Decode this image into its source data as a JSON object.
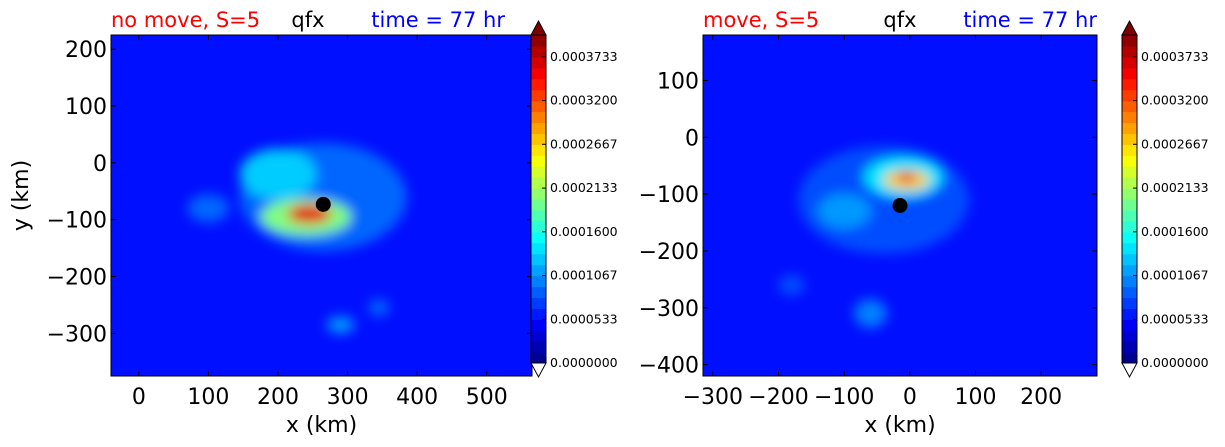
{
  "chart_data": [
    {
      "type": "heatmap",
      "title_left": "no move, S=5",
      "title_center": "qfx",
      "title_right": "time = 77 hr",
      "xlabel": "x (km)",
      "ylabel": "y (km)",
      "xlim": [
        -40,
        565
      ],
      "ylim": [
        -375,
        225
      ],
      "xticks": [
        0,
        100,
        200,
        300,
        400,
        500
      ],
      "xtick_labels": [
        "0",
        "100",
        "200",
        "300",
        "400",
        "500"
      ],
      "yticks": [
        200,
        100,
        0,
        -100,
        -200,
        -300
      ],
      "ytick_labels": [
        "200",
        "100",
        "0",
        "−100",
        "−200",
        "−300"
      ],
      "storm_center": {
        "x": 265,
        "y": -73
      },
      "features": [
        {
          "x": 265,
          "y": -60,
          "rx": 120,
          "ry": 95,
          "v": 9e-05
        },
        {
          "x": 240,
          "y": -95,
          "rx": 65,
          "ry": 32,
          "v": 0.0002
        },
        {
          "x": 245,
          "y": -90,
          "rx": 32,
          "ry": 17,
          "v": 0.00036
        },
        {
          "x": 200,
          "y": -20,
          "rx": 55,
          "ry": 45,
          "v": 0.00013
        },
        {
          "x": 100,
          "y": -80,
          "rx": 30,
          "ry": 25,
          "v": 9e-05
        },
        {
          "x": 290,
          "y": -285,
          "rx": 20,
          "ry": 15,
          "v": 0.00011
        },
        {
          "x": 345,
          "y": -255,
          "rx": 15,
          "ry": 15,
          "v": 9e-05
        }
      ],
      "colorbar": {
        "vmin": 0.0,
        "vmax": 0.0004,
        "tick_values": [
          0.0,
          5.33e-05,
          0.0001067,
          0.00016,
          0.0002133,
          0.0002667,
          0.00032,
          0.0003733
        ],
        "tick_labels": [
          "0.0000000",
          "0.0000533",
          "0.0001067",
          "0.0001600",
          "0.0002133",
          "0.0002667",
          "0.0003200",
          "0.0003733"
        ],
        "levels": 30,
        "colormap": "jet",
        "extend": "both"
      }
    },
    {
      "type": "heatmap",
      "title_left": "move, S=5",
      "title_center": "qfx",
      "title_right": "time = 77 hr",
      "xlabel": "x (km)",
      "ylabel": "",
      "xlim": [
        -315,
        285
      ],
      "ylim": [
        -420,
        180
      ],
      "xticks": [
        -300,
        -200,
        -100,
        0,
        100,
        200
      ],
      "xtick_labels": [
        "−300",
        "−200",
        "−100",
        "0",
        "100",
        "200"
      ],
      "yticks": [
        100,
        0,
        -100,
        -200,
        -300,
        -400
      ],
      "ytick_labels": [
        "100",
        "0",
        "−100",
        "−200",
        "−300",
        "−400"
      ],
      "storm_center": {
        "x": -15,
        "y": -120
      },
      "features": [
        {
          "x": -40,
          "y": -110,
          "rx": 130,
          "ry": 95,
          "v": 8e-05
        },
        {
          "x": -10,
          "y": -70,
          "rx": 60,
          "ry": 35,
          "v": 0.00014
        },
        {
          "x": -5,
          "y": -75,
          "rx": 35,
          "ry": 17,
          "v": 0.00027
        },
        {
          "x": -5,
          "y": -70,
          "rx": 14,
          "ry": 9,
          "v": 0.00036
        },
        {
          "x": -100,
          "y": -130,
          "rx": 40,
          "ry": 30,
          "v": 0.00011
        },
        {
          "x": -60,
          "y": -310,
          "rx": 25,
          "ry": 25,
          "v": 0.0001
        },
        {
          "x": -180,
          "y": -260,
          "rx": 20,
          "ry": 18,
          "v": 8e-05
        }
      ],
      "colorbar": {
        "vmin": 0.0,
        "vmax": 0.0004,
        "tick_values": [
          0.0,
          5.33e-05,
          0.0001067,
          0.00016,
          0.0002133,
          0.0002667,
          0.00032,
          0.0003733
        ],
        "tick_labels": [
          "0.0000000",
          "0.0000533",
          "0.0001067",
          "0.0001600",
          "0.0002133",
          "0.0002667",
          "0.0003200",
          "0.0003733"
        ],
        "levels": 30,
        "colormap": "jet",
        "extend": "both"
      }
    }
  ]
}
